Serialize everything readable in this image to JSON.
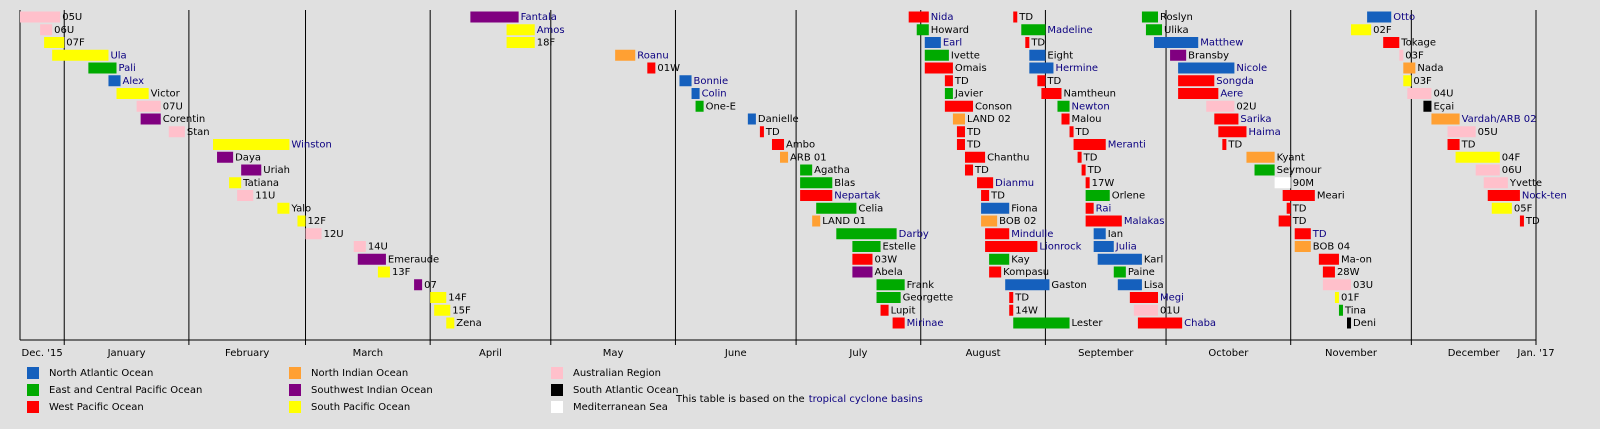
{
  "chart_data": {
    "type": "timeline",
    "xlim": [
      -11,
      366
    ],
    "xticks": [
      {
        "value": -5.5,
        "label": "Dec. '15"
      },
      {
        "value": 15.5,
        "label": "January"
      },
      {
        "value": 45.5,
        "label": "February"
      },
      {
        "value": 75.5,
        "label": "March"
      },
      {
        "value": 106,
        "label": "April"
      },
      {
        "value": 136.5,
        "label": "May"
      },
      {
        "value": 167,
        "label": "June"
      },
      {
        "value": 197.5,
        "label": "July"
      },
      {
        "value": 228.5,
        "label": "August"
      },
      {
        "value": 259,
        "label": "September"
      },
      {
        "value": 289.5,
        "label": "October"
      },
      {
        "value": 320,
        "label": "November"
      },
      {
        "value": 350.5,
        "label": "December"
      },
      {
        "value": 366,
        "label": "Jan. '17"
      }
    ],
    "grid": [
      0,
      31,
      60,
      91,
      121,
      152,
      182,
      213,
      244,
      274,
      305,
      335,
      366
    ],
    "basins": [
      {
        "name": "North Atlantic Ocean",
        "color": "#1560bd"
      },
      {
        "name": "East and Central Pacific Ocean",
        "color": "#00aa00"
      },
      {
        "name": "West Pacific Ocean",
        "color": "#ff0000"
      },
      {
        "name": "North Indian Ocean",
        "color": "#ffa033"
      },
      {
        "name": "Southwest Indian Ocean",
        "color": "#800080"
      },
      {
        "name": "South Pacific Ocean",
        "color": "#ffff00"
      },
      {
        "name": "Australian Region",
        "color": "#ffc0cb"
      },
      {
        "name": "South Atlantic Ocean",
        "color": "#000000"
      },
      {
        "name": "Mediterranean Sea",
        "color": "#ffffff"
      }
    ],
    "events": [
      {
        "name": "05U",
        "start": -11,
        "end": -1,
        "basin": 6
      },
      {
        "name": "06U",
        "start": -6,
        "end": -3,
        "basin": 6
      },
      {
        "name": "07F",
        "start": -5,
        "end": 0,
        "basin": 5
      },
      {
        "name": "Ula",
        "start": -3,
        "end": 11,
        "basin": 5,
        "link": true
      },
      {
        "name": "Pali",
        "start": 6,
        "end": 13,
        "basin": 1,
        "link": true
      },
      {
        "name": "Alex",
        "start": 11,
        "end": 14,
        "basin": 0,
        "link": true
      },
      {
        "name": "Victor",
        "start": 13,
        "end": 21,
        "basin": 5
      },
      {
        "name": "07U",
        "start": 18,
        "end": 24,
        "basin": 6
      },
      {
        "name": "Corentin",
        "start": 19,
        "end": 24,
        "basin": 4
      },
      {
        "name": "Stan",
        "start": 26,
        "end": 30,
        "basin": 6
      },
      {
        "name": "Winston",
        "start": 37,
        "end": 56,
        "basin": 5,
        "link": true
      },
      {
        "name": "Daya",
        "start": 38,
        "end": 42,
        "basin": 4
      },
      {
        "name": "Uriah",
        "start": 44,
        "end": 49,
        "basin": 4
      },
      {
        "name": "Tatiana",
        "start": 41,
        "end": 44,
        "basin": 5
      },
      {
        "name": "11U",
        "start": 43,
        "end": 47,
        "basin": 6
      },
      {
        "name": "Yalo",
        "start": 53,
        "end": 56,
        "basin": 5
      },
      {
        "name": "12F",
        "start": 58,
        "end": 60,
        "basin": 5
      },
      {
        "name": "12U",
        "start": 60,
        "end": 64,
        "basin": 6
      },
      {
        "name": "14U",
        "start": 72,
        "end": 75,
        "basin": 6
      },
      {
        "name": "Emeraude",
        "start": 73,
        "end": 80,
        "basin": 4
      },
      {
        "name": "13F",
        "start": 78,
        "end": 81,
        "basin": 5
      },
      {
        "name": "07",
        "start": 87,
        "end": 89,
        "basin": 4
      },
      {
        "name": "14F",
        "start": 91,
        "end": 95,
        "basin": 5
      },
      {
        "name": "15F",
        "start": 92,
        "end": 96,
        "basin": 5
      },
      {
        "name": "Zena",
        "start": 95,
        "end": 97,
        "basin": 5
      },
      {
        "name": "Fantala",
        "start": 101,
        "end": 113,
        "basin": 4,
        "link": true
      },
      {
        "name": "Amos",
        "start": 110,
        "end": 117,
        "basin": 5,
        "link": true
      },
      {
        "name": "18F",
        "start": 110,
        "end": 117,
        "basin": 5
      },
      {
        "name": "Roanu",
        "start": 137,
        "end": 142,
        "basin": 3,
        "link": true
      },
      {
        "name": "01W",
        "start": 145,
        "end": 147,
        "basin": 2
      },
      {
        "name": "Bonnie",
        "start": 153,
        "end": 156,
        "basin": 0,
        "link": true
      },
      {
        "name": "Colin",
        "start": 156,
        "end": 158,
        "basin": 0,
        "link": true
      },
      {
        "name": "One-E",
        "start": 157,
        "end": 159,
        "basin": 1
      },
      {
        "name": "Danielle",
        "start": 170,
        "end": 172,
        "basin": 0
      },
      {
        "name": "TD",
        "start": 173,
        "end": 174,
        "basin": 2
      },
      {
        "name": "Ambo",
        "start": 176,
        "end": 179,
        "basin": 2
      },
      {
        "name": "ARB 01",
        "start": 178,
        "end": 180,
        "basin": 3
      },
      {
        "name": "Agatha",
        "start": 183,
        "end": 186,
        "basin": 1
      },
      {
        "name": "Blas",
        "start": 183,
        "end": 191,
        "basin": 1
      },
      {
        "name": "Nepartak",
        "start": 183,
        "end": 191,
        "basin": 2,
        "link": true
      },
      {
        "name": "Celia",
        "start": 187,
        "end": 197,
        "basin": 1
      },
      {
        "name": "LAND 01",
        "start": 186,
        "end": 188,
        "basin": 3
      },
      {
        "name": "Darby",
        "start": 192,
        "end": 207,
        "basin": 1,
        "link": true
      },
      {
        "name": "Estelle",
        "start": 196,
        "end": 203,
        "basin": 1
      },
      {
        "name": "03W",
        "start": 196,
        "end": 201,
        "basin": 2
      },
      {
        "name": "Abela",
        "start": 196,
        "end": 201,
        "basin": 4
      },
      {
        "name": "Frank",
        "start": 202,
        "end": 209,
        "basin": 1
      },
      {
        "name": "Georgette",
        "start": 202,
        "end": 208,
        "basin": 1
      },
      {
        "name": "Lupit",
        "start": 203,
        "end": 205,
        "basin": 2
      },
      {
        "name": "Mirinae",
        "start": 206,
        "end": 209,
        "basin": 2,
        "link": true
      },
      {
        "name": "Nida",
        "start": 210,
        "end": 215,
        "basin": 2,
        "link": true
      },
      {
        "name": "Howard",
        "start": 212,
        "end": 215,
        "basin": 1
      },
      {
        "name": "Earl",
        "start": 214,
        "end": 218,
        "basin": 0,
        "link": true
      },
      {
        "name": "Ivette",
        "start": 214,
        "end": 220,
        "basin": 1
      },
      {
        "name": "Omais",
        "start": 214,
        "end": 221,
        "basin": 2
      },
      {
        "name": "TD",
        "start": 219,
        "end": 221,
        "basin": 2
      },
      {
        "name": "Javier",
        "start": 219,
        "end": 221,
        "basin": 1
      },
      {
        "name": "Conson",
        "start": 219,
        "end": 226,
        "basin": 2
      },
      {
        "name": "LAND 02",
        "start": 221,
        "end": 224,
        "basin": 3
      },
      {
        "name": "TD",
        "start": 222,
        "end": 224,
        "basin": 2
      },
      {
        "name": "TD",
        "start": 222,
        "end": 224,
        "basin": 2
      },
      {
        "name": "Chanthu",
        "start": 224,
        "end": 229,
        "basin": 2
      },
      {
        "name": "TD",
        "start": 224,
        "end": 226,
        "basin": 2
      },
      {
        "name": "Dianmu",
        "start": 227,
        "end": 231,
        "basin": 2,
        "link": true
      },
      {
        "name": "TD",
        "start": 228,
        "end": 230,
        "basin": 2
      },
      {
        "name": "Fiona",
        "start": 228,
        "end": 235,
        "basin": 0
      },
      {
        "name": "BOB 02",
        "start": 228,
        "end": 232,
        "basin": 3
      },
      {
        "name": "Mindulle",
        "start": 229,
        "end": 235,
        "basin": 2,
        "link": true
      },
      {
        "name": "Lionrock",
        "start": 229,
        "end": 242,
        "basin": 2,
        "link": true
      },
      {
        "name": "Kay",
        "start": 230,
        "end": 235,
        "basin": 1
      },
      {
        "name": "Kompasu",
        "start": 230,
        "end": 233,
        "basin": 2
      },
      {
        "name": "Gaston",
        "start": 234,
        "end": 245,
        "basin": 0
      },
      {
        "name": "TD",
        "start": 235,
        "end": 236,
        "basin": 2
      },
      {
        "name": "14W",
        "start": 235,
        "end": 236,
        "basin": 2
      },
      {
        "name": "Lester",
        "start": 236,
        "end": 250,
        "basin": 1
      },
      {
        "name": "TD",
        "start": 236,
        "end": 237,
        "basin": 2
      },
      {
        "name": "Madeline",
        "start": 238,
        "end": 244,
        "basin": 1,
        "link": true
      },
      {
        "name": "TD",
        "start": 239,
        "end": 240,
        "basin": 2
      },
      {
        "name": "Eight",
        "start": 240,
        "end": 244,
        "basin": 0
      },
      {
        "name": "Hermine",
        "start": 240,
        "end": 246,
        "basin": 0,
        "link": true
      },
      {
        "name": "TD",
        "start": 242,
        "end": 244,
        "basin": 2
      },
      {
        "name": "Namtheun",
        "start": 243,
        "end": 248,
        "basin": 2
      },
      {
        "name": "Newton",
        "start": 247,
        "end": 250,
        "basin": 1,
        "link": true
      },
      {
        "name": "Malou",
        "start": 248,
        "end": 250,
        "basin": 2
      },
      {
        "name": "TD",
        "start": 250,
        "end": 251,
        "basin": 2
      },
      {
        "name": "Meranti",
        "start": 251,
        "end": 259,
        "basin": 2,
        "link": true
      },
      {
        "name": "TD",
        "start": 252,
        "end": 253,
        "basin": 2
      },
      {
        "name": "TD",
        "start": 253,
        "end": 254,
        "basin": 2
      },
      {
        "name": "17W",
        "start": 254,
        "end": 255,
        "basin": 2
      },
      {
        "name": "Orlene",
        "start": 254,
        "end": 260,
        "basin": 1
      },
      {
        "name": "Rai",
        "start": 254,
        "end": 256,
        "basin": 2,
        "link": true
      },
      {
        "name": "Malakas",
        "start": 254,
        "end": 263,
        "basin": 2,
        "link": true
      },
      {
        "name": "Ian",
        "start": 256,
        "end": 259,
        "basin": 0
      },
      {
        "name": "Julia",
        "start": 256,
        "end": 261,
        "basin": 0,
        "link": true
      },
      {
        "name": "Karl",
        "start": 257,
        "end": 268,
        "basin": 0
      },
      {
        "name": "Paine",
        "start": 261,
        "end": 264,
        "basin": 1
      },
      {
        "name": "Lisa",
        "start": 262,
        "end": 268,
        "basin": 0
      },
      {
        "name": "Megi",
        "start": 265,
        "end": 272,
        "basin": 2,
        "link": true
      },
      {
        "name": "01U",
        "start": 266,
        "end": 272,
        "basin": 6
      },
      {
        "name": "Chaba",
        "start": 267,
        "end": 278,
        "basin": 2,
        "link": true
      },
      {
        "name": "Roslyn",
        "start": 268,
        "end": 272,
        "basin": 1
      },
      {
        "name": "Ulika",
        "start": 269,
        "end": 273,
        "basin": 1
      },
      {
        "name": "Matthew",
        "start": 271,
        "end": 282,
        "basin": 0,
        "link": true
      },
      {
        "name": "Bransby",
        "start": 275,
        "end": 279,
        "basin": 4
      },
      {
        "name": "Nicole",
        "start": 277,
        "end": 291,
        "basin": 0,
        "link": true
      },
      {
        "name": "Songda",
        "start": 277,
        "end": 286,
        "basin": 2,
        "link": true
      },
      {
        "name": "Aere",
        "start": 277,
        "end": 287,
        "basin": 2,
        "link": true
      },
      {
        "name": "02U",
        "start": 284,
        "end": 291,
        "basin": 6
      },
      {
        "name": "Sarika",
        "start": 286,
        "end": 292,
        "basin": 2,
        "link": true
      },
      {
        "name": "Haima",
        "start": 287,
        "end": 294,
        "basin": 2,
        "link": true
      },
      {
        "name": "TD",
        "start": 288,
        "end": 289,
        "basin": 2
      },
      {
        "name": "Kyant",
        "start": 294,
        "end": 301,
        "basin": 3
      },
      {
        "name": "Seymour",
        "start": 296,
        "end": 301,
        "basin": 1
      },
      {
        "name": "90M",
        "start": 301,
        "end": 305,
        "basin": 8
      },
      {
        "name": "Meari",
        "start": 303,
        "end": 311,
        "basin": 2
      },
      {
        "name": "TD",
        "start": 304,
        "end": 305,
        "basin": 2
      },
      {
        "name": "TD",
        "start": 302,
        "end": 305,
        "basin": 2
      },
      {
        "name": "TD",
        "start": 306,
        "end": 310,
        "basin": 2,
        "link": true
      },
      {
        "name": "BOB 04",
        "start": 306,
        "end": 310,
        "basin": 3
      },
      {
        "name": "Ma-on",
        "start": 312,
        "end": 317,
        "basin": 2
      },
      {
        "name": "28W",
        "start": 313,
        "end": 316,
        "basin": 2
      },
      {
        "name": "03U",
        "start": 313,
        "end": 320,
        "basin": 6
      },
      {
        "name": "01F",
        "start": 316,
        "end": 317,
        "basin": 5
      },
      {
        "name": "Tina",
        "start": 317,
        "end": 318,
        "basin": 1
      },
      {
        "name": "Deni",
        "start": 319,
        "end": 320,
        "basin": 7
      },
      {
        "name": "Otto",
        "start": 324,
        "end": 330,
        "basin": 0,
        "link": true
      },
      {
        "name": "02F",
        "start": 320,
        "end": 325,
        "basin": 5
      },
      {
        "name": "Tokage",
        "start": 328,
        "end": 332,
        "basin": 2
      },
      {
        "name": "03F",
        "start": 332,
        "end": 333,
        "basin": 6
      },
      {
        "name": "Nada",
        "start": 333,
        "end": 336,
        "basin": 3
      },
      {
        "name": "03F",
        "start": 333,
        "end": 335,
        "basin": 5
      },
      {
        "name": "04U",
        "start": 334,
        "end": 340,
        "basin": 6
      },
      {
        "name": "Eçai",
        "start": 338,
        "end": 340,
        "basin": 7
      },
      {
        "name": "Vardah/ARB 02",
        "start": 340,
        "end": 347,
        "basin": 3,
        "link": true
      },
      {
        "name": "05U",
        "start": 344,
        "end": 351,
        "basin": 6
      },
      {
        "name": "TD",
        "start": 344,
        "end": 347,
        "basin": 2
      },
      {
        "name": "04F",
        "start": 346,
        "end": 357,
        "basin": 5
      },
      {
        "name": "06U",
        "start": 351,
        "end": 357,
        "basin": 6
      },
      {
        "name": "Yvette",
        "start": 353,
        "end": 359,
        "basin": 6
      },
      {
        "name": "Nock-ten",
        "start": 354,
        "end": 362,
        "basin": 2,
        "link": true
      },
      {
        "name": "05F",
        "start": 355,
        "end": 360,
        "basin": 5
      },
      {
        "name": "TD",
        "start": 362,
        "end": 363,
        "basin": 2
      }
    ],
    "footnote": {
      "text": "This table is based on the",
      "link": "tropical cyclone basins"
    }
  }
}
